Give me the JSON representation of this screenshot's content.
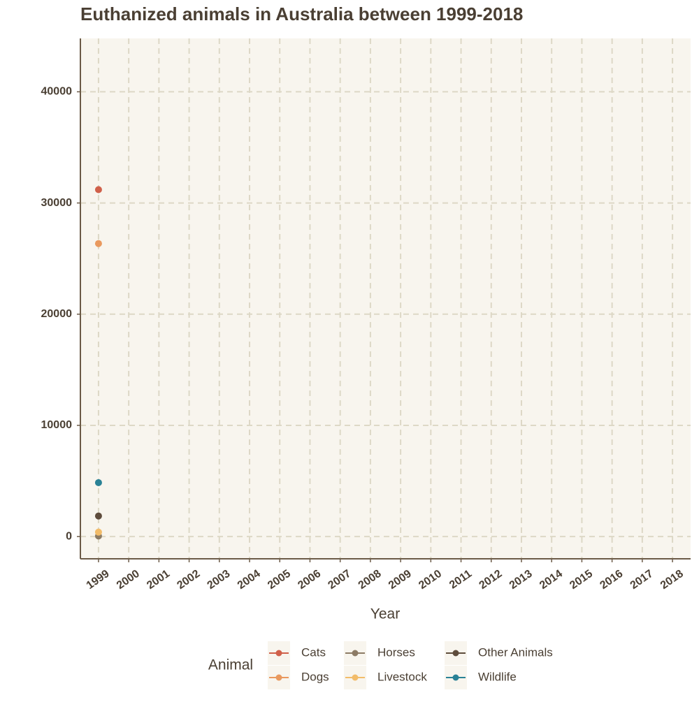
{
  "chart_data": {
    "type": "line",
    "title": "Euthanized animals in Australia between 1999-2018",
    "x_label": "Year",
    "legend_title": "Animal",
    "x": [
      1999,
      2000,
      2001,
      2002,
      2003,
      2004,
      2005,
      2006,
      2007,
      2008,
      2009,
      2010,
      2011,
      2012,
      2013,
      2014,
      2015,
      2016,
      2017,
      2018
    ],
    "xlim": [
      1998.4,
      2018.6
    ],
    "xticks": [
      1999,
      2000,
      2001,
      2002,
      2003,
      2004,
      2005,
      2006,
      2007,
      2008,
      2009,
      2010,
      2011,
      2012,
      2013,
      2014,
      2015,
      2016,
      2017,
      2018
    ],
    "ylim": [
      -2000,
      44800
    ],
    "yticks": [
      0,
      10000,
      20000,
      30000,
      40000
    ],
    "grid": true,
    "legend_position": "bottom",
    "series": [
      {
        "name": "Cats",
        "color": "#d0604a",
        "values": [
          31200,
          null,
          null,
          null,
          null,
          null,
          null,
          null,
          null,
          null,
          null,
          null,
          null,
          null,
          null,
          null,
          null,
          null,
          null,
          null
        ]
      },
      {
        "name": "Dogs",
        "color": "#e9995e",
        "values": [
          26350,
          null,
          null,
          null,
          null,
          null,
          null,
          null,
          null,
          null,
          null,
          null,
          null,
          null,
          null,
          null,
          null,
          null,
          null,
          null
        ]
      },
      {
        "name": "Horses",
        "color": "#8c7b65",
        "values": [
          50,
          null,
          null,
          null,
          null,
          null,
          null,
          null,
          null,
          null,
          null,
          null,
          null,
          null,
          null,
          null,
          null,
          null,
          null,
          null
        ]
      },
      {
        "name": "Livestock",
        "color": "#f2bc6a",
        "values": [
          400,
          null,
          null,
          null,
          null,
          null,
          null,
          null,
          null,
          null,
          null,
          null,
          null,
          null,
          null,
          null,
          null,
          null,
          null,
          null
        ]
      },
      {
        "name": "Other Animals",
        "color": "#5e4c3c",
        "values": [
          1850,
          null,
          null,
          null,
          null,
          null,
          null,
          null,
          null,
          null,
          null,
          null,
          null,
          null,
          null,
          null,
          null,
          null,
          null,
          null
        ]
      },
      {
        "name": "Wildlife",
        "color": "#2a8296",
        "values": [
          4850,
          null,
          null,
          null,
          null,
          null,
          null,
          null,
          null,
          null,
          null,
          null,
          null,
          null,
          null,
          null,
          null,
          null,
          null,
          null
        ]
      }
    ]
  }
}
